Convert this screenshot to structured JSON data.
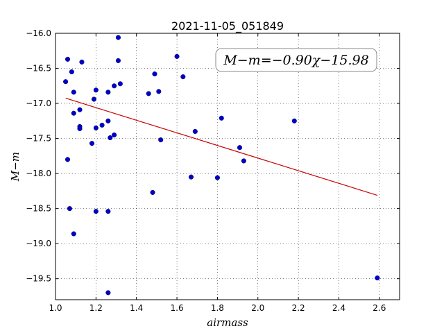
{
  "chart_data": {
    "type": "scatter",
    "title": "2021-11-05_051849",
    "xlabel": "airmass",
    "ylabel": "M−m",
    "xlim": [
      1.0,
      2.7
    ],
    "ylim": [
      -16.0,
      -19.8
    ],
    "y_inverted": true,
    "grid": true,
    "xticks": [
      "1.0",
      "1.2",
      "1.4",
      "1.6",
      "1.8",
      "2.0",
      "2.2",
      "2.4",
      "2.6"
    ],
    "yticks": [
      "−16.0",
      "−16.5",
      "−17.0",
      "−17.5",
      "−18.0",
      "−18.5",
      "−19.0",
      "−19.5"
    ],
    "annotation": "M−m=−0.90χ−15.98",
    "points_color": "#0000cc",
    "fit_color": "#cc0000",
    "fit": {
      "slope": -0.9,
      "intercept": -15.98,
      "x_range": [
        1.05,
        2.59
      ]
    },
    "x": [
      1.31,
      1.06,
      1.08,
      1.13,
      1.05,
      1.31,
      1.49,
      1.6,
      1.63,
      1.32,
      1.29,
      1.2,
      1.26,
      1.09,
      1.46,
      1.51,
      1.19,
      1.12,
      1.09,
      1.26,
      1.23,
      1.12,
      1.2,
      1.69,
      1.82,
      2.18,
      1.12,
      1.29,
      1.27,
      1.52,
      1.18,
      1.91,
      1.06,
      1.93,
      1.67,
      1.8,
      1.48,
      1.07,
      1.2,
      1.26,
      1.09,
      2.59,
      1.26
    ],
    "y": [
      -16.06,
      -16.37,
      -16.55,
      -16.41,
      -16.69,
      -16.39,
      -16.58,
      -16.33,
      -16.62,
      -16.72,
      -16.75,
      -16.81,
      -16.84,
      -16.84,
      -16.86,
      -16.83,
      -16.94,
      -17.09,
      -17.14,
      -17.25,
      -17.31,
      -17.33,
      -17.35,
      -17.4,
      -17.21,
      -17.25,
      -17.36,
      -17.45,
      -17.49,
      -17.52,
      -17.57,
      -17.63,
      -17.8,
      -17.82,
      -18.05,
      -18.06,
      -18.27,
      -18.5,
      -18.54,
      -18.54,
      -18.86,
      -19.49,
      -19.7
    ]
  }
}
